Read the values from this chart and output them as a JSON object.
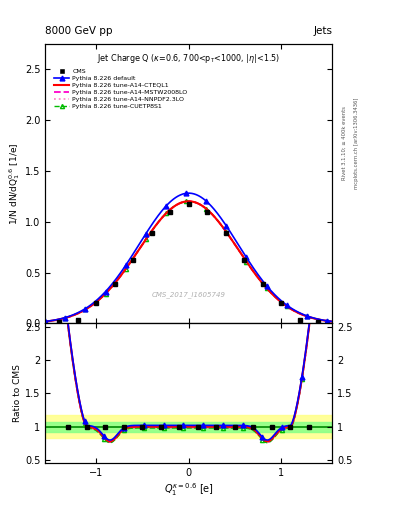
{
  "title_top_left": "8000 GeV pp",
  "title_top_right": "Jets",
  "plot_title": "Jet Charge Q (κ=0.6, 700<p$_T$<1000, |η|<1.5)",
  "ylabel_main": "1/N dN/dQ$_1^{0.6}$ [1/e]",
  "ylabel_ratio": "Ratio to CMS",
  "xlabel": "Q$_1^{\\kappa=0.6}$ [e]",
  "watermark": "CMS_2017_I1605749",
  "right_label1": "Rivet 3.1.10; ≥ 400k events",
  "right_label2": "mcplots.cern.ch [arXiv:1306.3436]",
  "color_cms": "#000000",
  "color_default": "#0000ff",
  "color_cteq": "#ff0000",
  "color_mstw": "#ff00cc",
  "color_nnpdf": "#ff88cc",
  "color_cuetp": "#00bb00",
  "band_yellow": 0.175,
  "band_green": 0.075,
  "ylim_main": [
    0.0,
    2.75
  ],
  "ylim_ratio": [
    0.45,
    2.55
  ],
  "xlim": [
    -1.55,
    1.55
  ],
  "xticks": [
    -1.0,
    0.0,
    1.0
  ]
}
